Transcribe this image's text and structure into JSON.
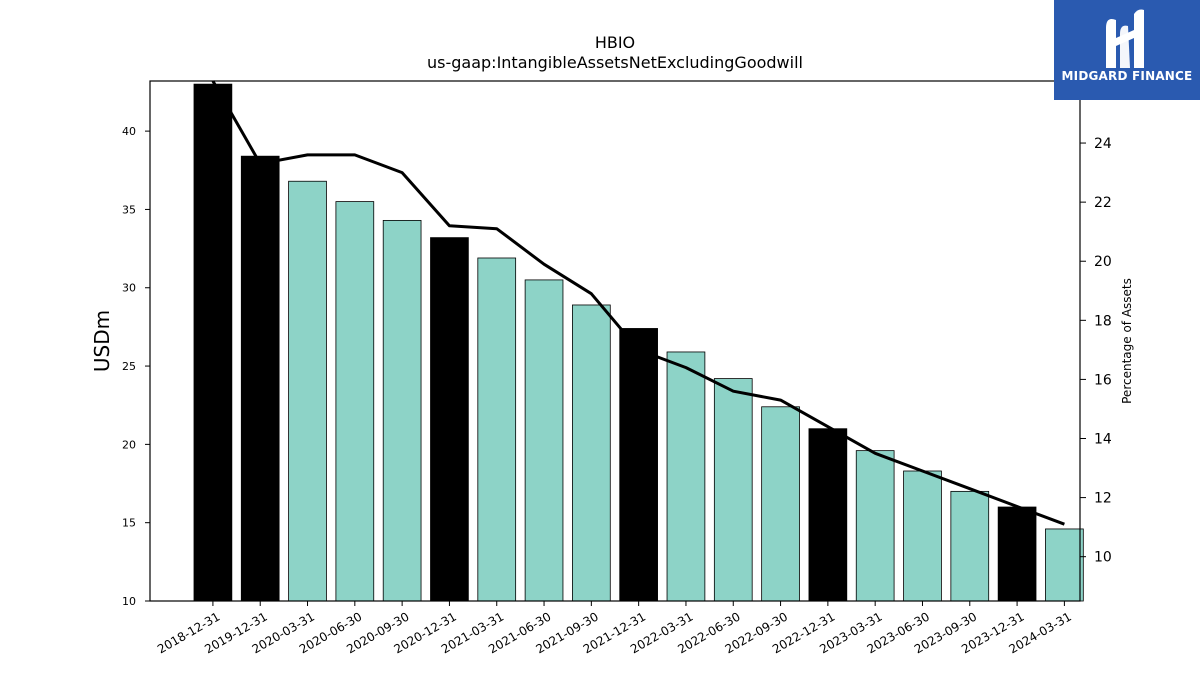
{
  "logo": {
    "brand_name": "MIDGARD FINANCE",
    "icon": "midgard-logo-icon",
    "background": "#2a5ab0"
  },
  "chart_data": {
    "type": "bar",
    "title": "HBIO",
    "subtitle": "us-gaap:IntangibleAssetsNetExcludingGoodwill",
    "ylabel": "USDm",
    "y2label": "Percentage of Assets",
    "categories": [
      "2018-12-31",
      "2019-12-31",
      "2020-03-31",
      "2020-06-30",
      "2020-09-30",
      "2020-12-31",
      "2021-03-31",
      "2021-06-30",
      "2021-09-30",
      "2021-12-31",
      "2022-03-31",
      "2022-06-30",
      "2022-09-30",
      "2022-12-31",
      "2023-03-31",
      "2023-06-30",
      "2023-09-30",
      "2023-12-31",
      "2024-03-31"
    ],
    "series": [
      {
        "values": [
          43.0,
          38.4,
          36.8,
          35.5,
          34.3,
          33.2,
          31.9,
          30.5,
          28.9,
          27.4,
          25.9,
          24.2,
          22.4,
          21.0,
          19.6,
          18.3,
          17.0,
          16.0,
          14.6
        ],
        "bar_colors": [
          "#000000",
          "#000000",
          "#8dd3c7",
          "#8dd3c7",
          "#8dd3c7",
          "#000000",
          "#8dd3c7",
          "#8dd3c7",
          "#8dd3c7",
          "#000000",
          "#8dd3c7",
          "#8dd3c7",
          "#8dd3c7",
          "#000000",
          "#8dd3c7",
          "#8dd3c7",
          "#8dd3c7",
          "#000000",
          "#8dd3c7"
        ]
      },
      {
        "axis": "right",
        "type": "line",
        "color": "#000000",
        "values": [
          27.4,
          23.3,
          23.6,
          23.6,
          23.0,
          21.2,
          21.1,
          19.9,
          18.9,
          17.0,
          16.4,
          15.6,
          15.3,
          14.4,
          13.5,
          12.9,
          12.3,
          11.7,
          11.1
        ]
      }
    ],
    "ylim": [
      10,
      43.2
    ],
    "yticks": [
      10,
      15,
      20,
      25,
      30,
      35,
      40
    ],
    "y2lim": [
      8.5,
      26.1
    ],
    "y2ticks": [
      10,
      12,
      14,
      16,
      18,
      20,
      22,
      24
    ],
    "grid": false
  }
}
